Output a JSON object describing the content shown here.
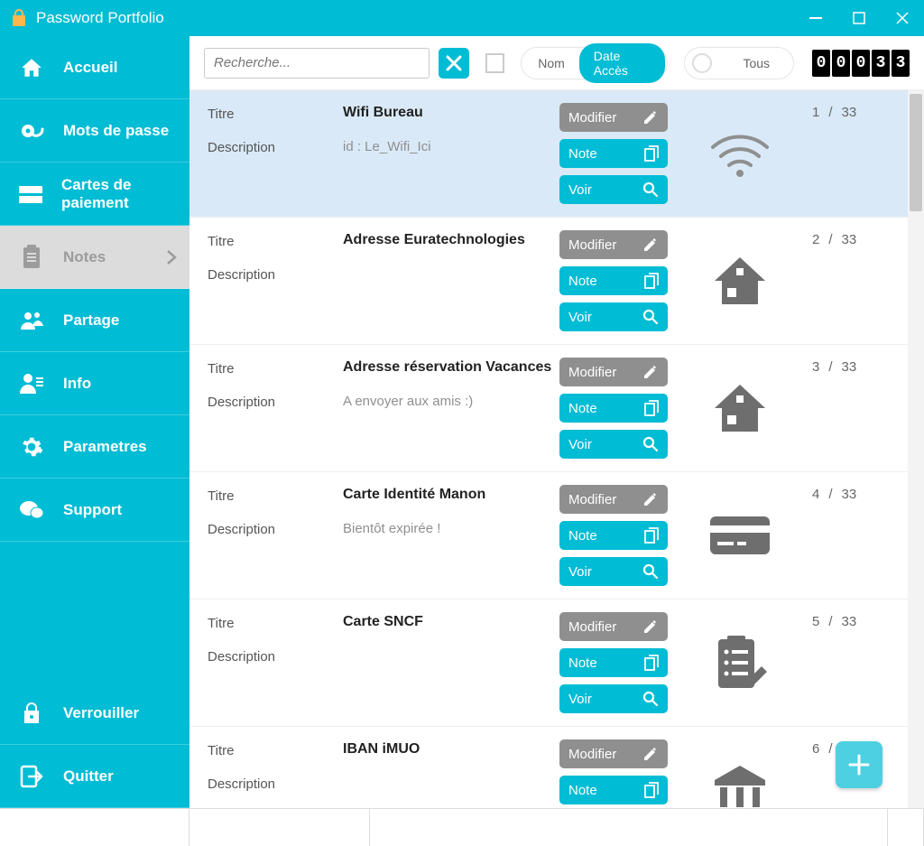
{
  "window": {
    "title": "Password Portfolio"
  },
  "sidebar": {
    "items": [
      {
        "label": "Accueil"
      },
      {
        "label": "Mots de passe"
      },
      {
        "label": "Cartes de paiement"
      },
      {
        "label": "Notes",
        "selected": true
      },
      {
        "label": "Partage"
      },
      {
        "label": "Info"
      },
      {
        "label": "Parametres"
      },
      {
        "label": "Support"
      }
    ],
    "footer": [
      {
        "label": "Verrouiller"
      },
      {
        "label": "Quitter"
      }
    ]
  },
  "toolbar": {
    "search_placeholder": "Recherche...",
    "sort": {
      "options": [
        "Nom",
        "Date Accès"
      ],
      "active": "Date Accès"
    },
    "filter": {
      "label": "Tous"
    },
    "counter_digits": [
      "0",
      "0",
      "0",
      "3",
      "3"
    ]
  },
  "list": {
    "labels": {
      "title": "Titre",
      "description": "Description"
    },
    "actions": {
      "modify": "Modifier",
      "note": "Note",
      "view": "Voir"
    },
    "total": 33,
    "rows": [
      {
        "title": "Wifi Bureau",
        "description": "id : Le_Wifi_Ici",
        "index": 1,
        "icon": "wifi",
        "selected": true
      },
      {
        "title": "Adresse Euratechnologies",
        "description": "",
        "index": 2,
        "icon": "home"
      },
      {
        "title": "Adresse réservation Vacances",
        "description": "A envoyer aux amis :)",
        "index": 3,
        "icon": "home"
      },
      {
        "title": "Carte Identité Manon",
        "description": "Bientôt expirée !",
        "index": 4,
        "icon": "card"
      },
      {
        "title": "Carte SNCF",
        "description": "",
        "index": 5,
        "icon": "clipboard"
      },
      {
        "title": "IBAN iMUO",
        "description": "",
        "index": 6,
        "icon": "bank"
      }
    ]
  },
  "colors": {
    "teal": "#00bcd4",
    "teal_light": "#4dd0e1",
    "gray": "#8f8f8f",
    "selected_bg": "#d9e9f7"
  }
}
